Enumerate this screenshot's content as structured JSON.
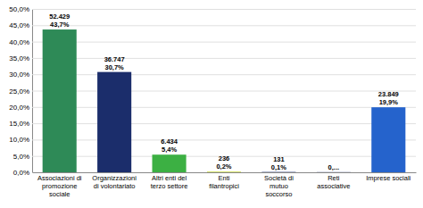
{
  "chart_data": {
    "type": "bar",
    "categories": [
      "Associazioni di\npromozione\nsociale",
      "Organizzazioni\ndi volontariato",
      "Altri enti del\nterzo settore",
      "Enti\nfilantropici",
      "Società di\nmutuo\nsoccorso",
      "Reti\nassociative",
      "Imprese sociali"
    ],
    "values": [
      43.7,
      30.7,
      5.4,
      0.2,
      0.1,
      0.05,
      19.9
    ],
    "value_labels": [
      "43,7%",
      "30,7%",
      "5,4%",
      "0,2%",
      "0,1%",
      "0,...",
      "19,9%"
    ],
    "counts": [
      {
        "value": 52429,
        "label": "52.429"
      },
      {
        "value": 36747,
        "label": "36.747"
      },
      {
        "value": 6434,
        "label": "6.434"
      },
      {
        "value": 236,
        "label": "236"
      },
      {
        "value": 131,
        "label": "131"
      },
      null,
      {
        "value": 23849,
        "label": "23.849"
      }
    ],
    "colors": [
      "#2e8a57",
      "#1b2d6b",
      "#3cb043",
      "#c8d93a",
      "#1b2d6b",
      "#1b2d6b",
      "#2563cc"
    ],
    "ylim": [
      0,
      50
    ],
    "yticks": [
      {
        "value": 0,
        "label": "0,0%"
      },
      {
        "value": 5,
        "label": "5,0%"
      },
      {
        "value": 10,
        "label": "10,0%"
      },
      {
        "value": 15,
        "label": "15,0%"
      },
      {
        "value": 20,
        "label": "20,0%"
      },
      {
        "value": 25,
        "label": "25,0%"
      },
      {
        "value": 30,
        "label": "30,0%"
      },
      {
        "value": 35,
        "label": "35,0%"
      },
      {
        "value": 40,
        "label": "40,0%"
      },
      {
        "value": 45,
        "label": "45,0%"
      },
      {
        "value": 50,
        "label": "50,0%"
      }
    ],
    "grid": true,
    "data_labels": true
  }
}
